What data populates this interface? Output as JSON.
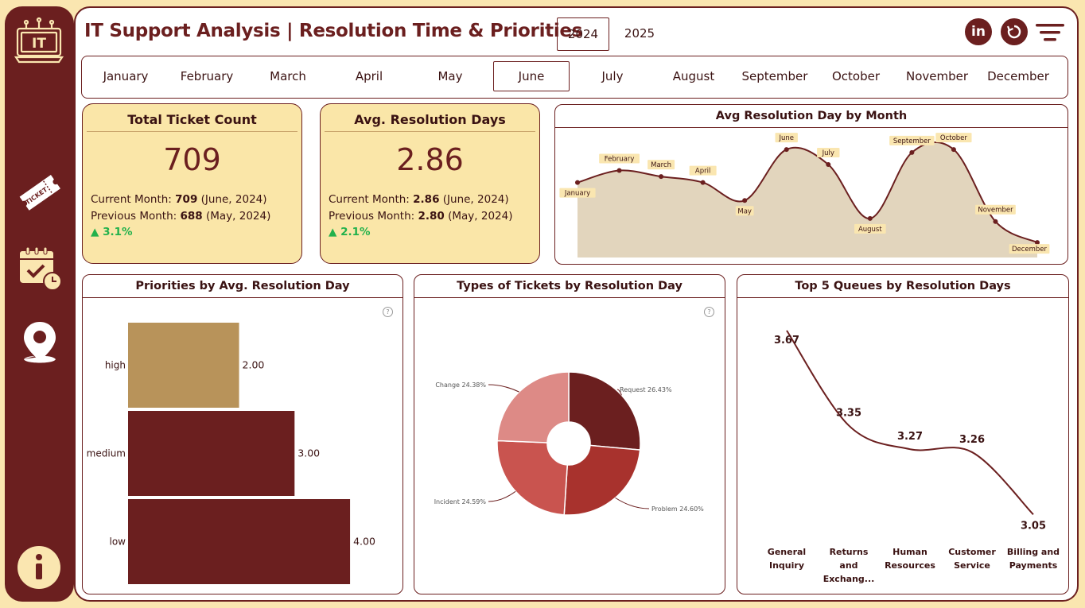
{
  "header": {
    "title": "IT Support Analysis | Resolution Time & Priorities",
    "years": [
      "2024",
      "2025"
    ],
    "selected_year": "2024"
  },
  "sidebar": {
    "logo_text": "IT",
    "icons": [
      "ticket-icon",
      "calendar-check-icon",
      "location-pin-icon",
      "info-icon"
    ]
  },
  "top_icons": [
    "linkedin-icon",
    "reset-icon",
    "filter-menu-icon"
  ],
  "months": {
    "items": [
      "January",
      "February",
      "March",
      "April",
      "May",
      "June",
      "July",
      "August",
      "September",
      "October",
      "November",
      "December"
    ],
    "selected": "June"
  },
  "kpi_tickets": {
    "title": "Total Ticket Count",
    "value": "709",
    "current_label": "Current Month:",
    "current_value": "709",
    "current_period": "(June, 2024)",
    "previous_label": "Previous Month:",
    "previous_value": "688",
    "previous_period": "(May, 2024)",
    "delta": "▲ 3.1%"
  },
  "kpi_days": {
    "title": "Avg. Resolution Days",
    "value": "2.86",
    "current_label": "Current Month:",
    "current_value": "2.86",
    "current_period": "(June, 2024)",
    "previous_label": "Previous Month:",
    "previous_value": "2.80",
    "previous_period": "(May, 2024)",
    "delta": "▲ 2.1%"
  },
  "chart_data": [
    {
      "type": "area",
      "title": "Avg Resolution Day by Month",
      "categories": [
        "January",
        "February",
        "March",
        "April",
        "May",
        "June",
        "July",
        "August",
        "September",
        "October",
        "November",
        "December"
      ],
      "values": [
        2.75,
        2.79,
        2.77,
        2.75,
        2.69,
        2.86,
        2.81,
        2.63,
        2.85,
        2.86,
        2.62,
        2.55
      ],
      "ylim": [
        2.5,
        2.9
      ],
      "color": "#6b1f1f",
      "fill": "#e2d5bd"
    },
    {
      "type": "bar",
      "orientation": "horizontal",
      "title": "Priorities by Avg. Resolution Day",
      "categories": [
        "high",
        "medium",
        "low"
      ],
      "values": [
        2.0,
        3.0,
        4.0
      ],
      "labels": [
        "2.00",
        "3.00",
        "4.00"
      ],
      "xlim": [
        0,
        4.3
      ],
      "colors": [
        "#b8935a",
        "#6b1f1f",
        "#6b1f1f"
      ]
    },
    {
      "type": "pie",
      "title": "Types of Tickets by Resolution Day",
      "labels": [
        "Request",
        "Problem",
        "Incident",
        "Change"
      ],
      "values": [
        26.43,
        24.6,
        24.59,
        24.38
      ],
      "display_labels": [
        "Request 26.43%",
        "Problem 24.60%",
        "Incident 24.59%",
        "Change 24.38%"
      ],
      "colors": [
        "#6b1f1f",
        "#a8322d",
        "#c9544f",
        "#dd8a86"
      ]
    },
    {
      "type": "line",
      "title": "Top 5 Queues by Resolution Days",
      "categories": [
        "General Inquiry",
        "Returns and Exchang...",
        "Human Resources",
        "Customer Service",
        "Billing and Payments"
      ],
      "category_lines": [
        [
          "General",
          "Inquiry"
        ],
        [
          "Returns",
          "and",
          "Exchang..."
        ],
        [
          "Human",
          "Resources"
        ],
        [
          "Customer",
          "Service"
        ],
        [
          "Billing and",
          "Payments"
        ]
      ],
      "values": [
        3.67,
        3.35,
        3.27,
        3.26,
        3.05
      ],
      "labels": [
        "3.67",
        "3.35",
        "3.27",
        "3.26",
        "3.05"
      ],
      "ylim": [
        3.0,
        3.75
      ],
      "color": "#6b1f1f"
    }
  ]
}
